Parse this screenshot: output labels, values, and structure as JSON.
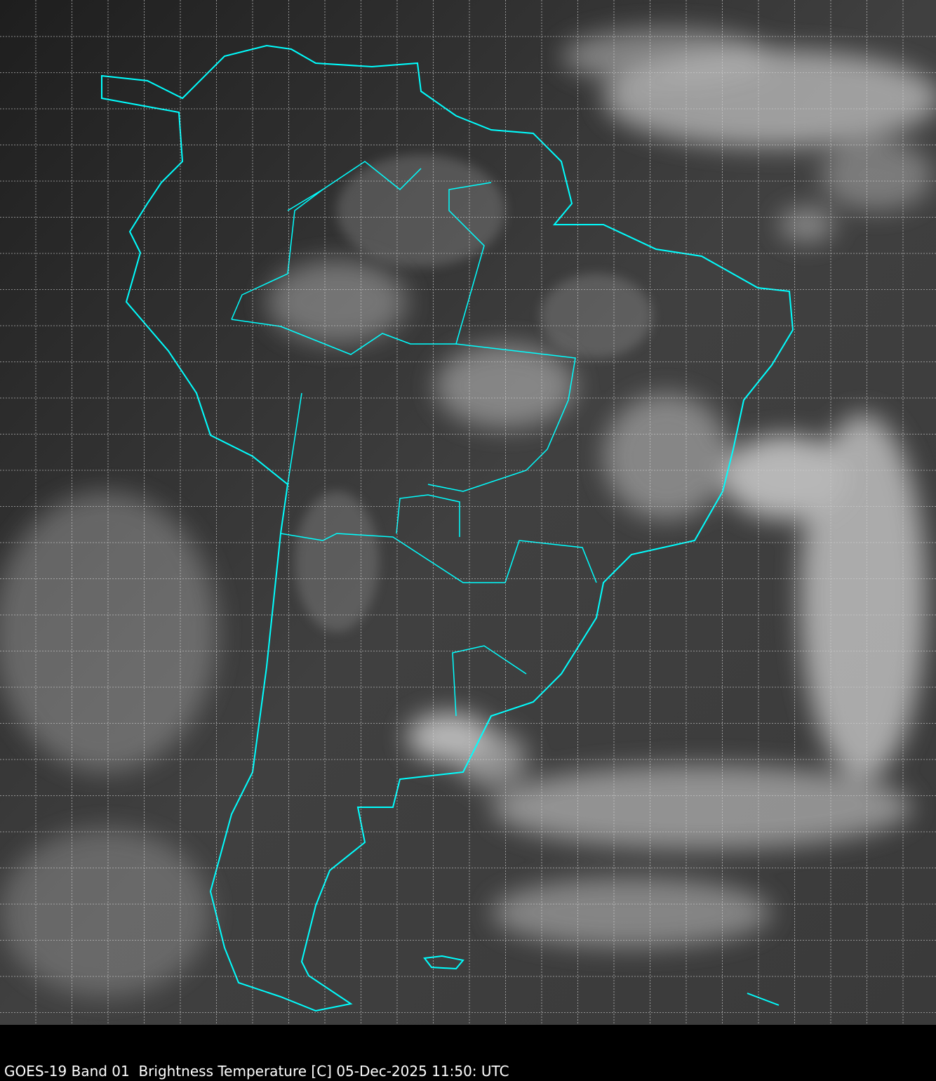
{
  "caption": "GOES-19 Band 01  Brightness Temperature [C] 05-Dec-2025 11:50: UTC",
  "colors": {
    "background": "#000000",
    "ocean": "#3a3a3a",
    "land": "#2e2e2e",
    "coastline": "#00ffff",
    "grid": "#d0d0d0",
    "cloud": "#e8e8e8"
  },
  "layers": [
    "satellite-imagery",
    "coastlines",
    "borders",
    "lat-lon-grid"
  ]
}
